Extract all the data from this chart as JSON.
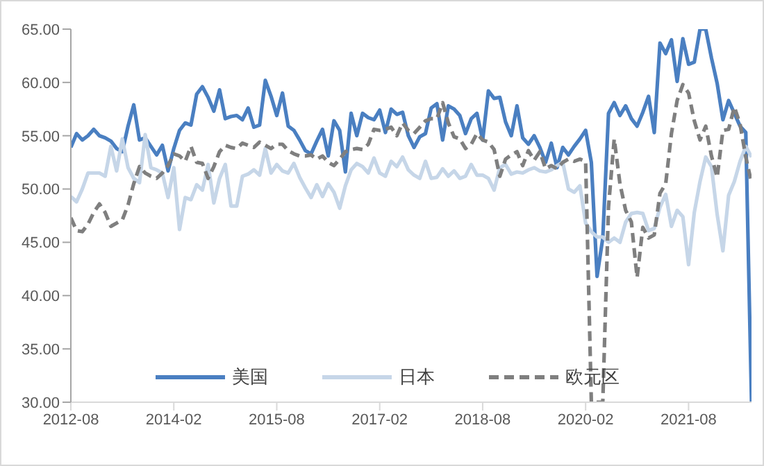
{
  "chart_data": {
    "type": "line",
    "x": [
      "2012-08",
      "2012-09",
      "2012-10",
      "2012-11",
      "2012-12",
      "2013-01",
      "2013-02",
      "2013-03",
      "2013-04",
      "2013-05",
      "2013-06",
      "2013-07",
      "2013-08",
      "2013-09",
      "2013-10",
      "2013-11",
      "2013-12",
      "2014-01",
      "2014-02",
      "2014-03",
      "2014-04",
      "2014-05",
      "2014-06",
      "2014-07",
      "2014-08",
      "2014-09",
      "2014-10",
      "2014-11",
      "2014-12",
      "2015-01",
      "2015-02",
      "2015-03",
      "2015-04",
      "2015-05",
      "2015-06",
      "2015-07",
      "2015-08",
      "2015-09",
      "2015-10",
      "2015-11",
      "2015-12",
      "2016-01",
      "2016-02",
      "2016-03",
      "2016-04",
      "2016-05",
      "2016-06",
      "2016-07",
      "2016-08",
      "2016-09",
      "2016-10",
      "2016-11",
      "2016-12",
      "2017-01",
      "2017-02",
      "2017-03",
      "2017-04",
      "2017-05",
      "2017-06",
      "2017-07",
      "2017-08",
      "2017-09",
      "2017-10",
      "2017-11",
      "2017-12",
      "2018-01",
      "2018-02",
      "2018-03",
      "2018-04",
      "2018-05",
      "2018-06",
      "2018-07",
      "2018-08",
      "2018-09",
      "2018-10",
      "2018-11",
      "2018-12",
      "2019-01",
      "2019-02",
      "2019-03",
      "2019-04",
      "2019-05",
      "2019-06",
      "2019-07",
      "2019-08",
      "2019-09",
      "2019-10",
      "2019-11",
      "2019-12",
      "2020-01",
      "2020-02",
      "2020-03",
      "2020-04",
      "2020-05",
      "2020-06",
      "2020-07",
      "2020-08",
      "2020-09",
      "2020-10",
      "2020-11",
      "2020-12",
      "2021-01",
      "2021-02",
      "2021-03",
      "2021-04",
      "2021-05",
      "2021-06",
      "2021-07",
      "2021-08",
      "2021-09",
      "2021-10",
      "2021-11",
      "2021-12",
      "2022-01",
      "2022-02",
      "2022-03",
      "2022-04",
      "2022-05",
      "2022-06",
      "2022-07"
    ],
    "series": [
      {
        "name": "美国",
        "color": "#4a7fc1",
        "line_style": "solid",
        "values": [
          53.9,
          55.2,
          54.6,
          55.0,
          55.6,
          55.0,
          54.8,
          54.5,
          53.8,
          53.5,
          55.9,
          57.9,
          54.6,
          54.8,
          54.0,
          53.2,
          54.1,
          51.7,
          53.8,
          55.5,
          56.2,
          56.0,
          58.9,
          59.6,
          58.6,
          57.3,
          59.3,
          56.6,
          56.8,
          56.9,
          56.5,
          57.6,
          55.8,
          56.0,
          60.2,
          58.7,
          56.9,
          59.0,
          55.9,
          55.5,
          54.6,
          53.6,
          53.3,
          54.5,
          55.6,
          53.1,
          56.4,
          55.5,
          51.6,
          57.1,
          55.0,
          57.1,
          56.7,
          56.5,
          57.4,
          55.3,
          57.5,
          57.0,
          57.2,
          55.0,
          53.9,
          54.9,
          55.2,
          57.6,
          58.0,
          54.6,
          57.8,
          57.5,
          56.9,
          55.2,
          56.6,
          57.1,
          54.6,
          59.2,
          58.5,
          58.6,
          56.3,
          55.0,
          57.8,
          54.8,
          54.2,
          55.0,
          53.9,
          52.5,
          54.3,
          52.0,
          53.9,
          53.2,
          54.0,
          54.7,
          55.5,
          52.5,
          41.8,
          45.4,
          57.1,
          58.1,
          56.9,
          57.8,
          56.6,
          55.9,
          57.2,
          58.7,
          55.3,
          63.7,
          62.7,
          64.0,
          60.1,
          64.1,
          61.7,
          61.9,
          65.0,
          65.0,
          62.3,
          59.9,
          56.5,
          58.3,
          57.1,
          55.9,
          55.3,
          30.0
        ]
      },
      {
        "name": "日本",
        "color": "#c6d6e8",
        "line_style": "solid",
        "values": [
          49.3,
          48.8,
          50.0,
          51.5,
          51.5,
          51.5,
          51.2,
          54.0,
          51.7,
          54.7,
          52.0,
          51.0,
          50.6,
          55.1,
          52.0,
          51.8,
          51.5,
          49.2,
          52.0,
          46.2,
          49.2,
          49.0,
          50.4,
          49.9,
          52.3,
          48.7,
          51.0,
          52.3,
          48.4,
          48.4,
          51.2,
          51.4,
          51.8,
          51.3,
          53.8,
          51.5,
          52.3,
          51.7,
          51.5,
          52.4,
          51.1,
          50.1,
          49.2,
          50.4,
          49.3,
          50.5,
          49.7,
          48.2,
          50.3,
          51.8,
          52.4,
          52.1,
          51.5,
          52.9,
          51.5,
          51.2,
          52.6,
          52.1,
          53.0,
          51.8,
          51.3,
          51.0,
          52.6,
          51.0,
          51.1,
          51.9,
          51.2,
          51.7,
          51.0,
          51.2,
          52.3,
          51.3,
          51.3,
          51.0,
          49.9,
          52.0,
          52.3,
          51.4,
          51.6,
          51.5,
          51.8,
          52.0,
          51.7,
          51.6,
          51.8,
          52.2,
          52.5,
          50.0,
          49.7,
          50.3,
          46.8,
          46.0,
          45.5,
          45.5,
          45.0,
          45.4,
          45.0,
          46.9,
          47.7,
          47.8,
          47.7,
          46.1,
          46.3,
          48.3,
          49.5,
          46.5,
          48.0,
          47.4,
          42.9,
          47.8,
          50.7,
          53.0,
          52.1,
          47.6,
          44.2,
          49.4,
          50.7,
          52.6,
          54.0,
          53.0
        ]
      },
      {
        "name": "欧元区",
        "color": "#7f7f7f",
        "line_style": "dashed",
        "values": [
          47.3,
          46.1,
          46.0,
          46.7,
          47.8,
          48.6,
          47.8,
          46.5,
          46.8,
          47.1,
          48.5,
          50.5,
          52.1,
          51.5,
          51.2,
          51.0,
          51.5,
          52.2,
          53.3,
          53.1,
          52.6,
          54.0,
          52.5,
          52.4,
          51.0,
          52.1,
          53.5,
          54.1,
          53.9,
          53.8,
          54.3,
          54.1,
          53.9,
          54.4,
          54.1,
          53.8,
          54.2,
          54.2,
          53.6,
          53.3,
          53.1,
          53.1,
          53.2,
          52.8,
          53.1,
          52.5,
          52.2,
          52.8,
          53.5,
          53.7,
          53.8,
          53.7,
          54.2,
          55.6,
          55.5,
          55.6,
          55.8,
          55.0,
          56.2,
          55.5,
          55.2,
          55.8,
          56.4,
          56.6,
          56.6,
          58.1,
          56.2,
          54.9,
          54.7,
          53.8,
          54.2,
          55.2,
          54.6,
          54.4,
          53.7,
          51.2,
          52.8,
          53.2,
          53.5,
          52.2,
          53.6,
          52.7,
          53.5,
          51.9,
          52.2,
          51.9,
          52.5,
          52.8,
          52.6,
          52.8,
          52.6,
          30.0,
          30.0,
          30.0,
          48.3,
          54.7,
          50.5,
          48.0,
          46.9,
          41.7,
          46.4,
          45.4,
          45.7,
          49.6,
          50.5,
          55.2,
          58.3,
          59.8,
          59.0,
          56.4,
          54.6,
          55.9,
          53.1,
          51.1,
          55.5,
          55.6,
          57.7,
          56.1,
          53.0,
          50.6
        ]
      }
    ],
    "xlim": [
      "2012-08",
      "2022-07"
    ],
    "xticks": [
      "2012-08",
      "2014-02",
      "2015-08",
      "2017-02",
      "2018-08",
      "2020-02",
      "2021-08"
    ],
    "ylim": [
      30,
      65
    ],
    "yticks": [
      {
        "value": 30,
        "label": "30.00"
      },
      {
        "value": 35,
        "label": "35.00"
      },
      {
        "value": 40,
        "label": "40.00"
      },
      {
        "value": 45,
        "label": "45.00"
      },
      {
        "value": 50,
        "label": "50.00"
      },
      {
        "value": 55,
        "label": "55.00"
      },
      {
        "value": 60,
        "label": "60.00"
      },
      {
        "value": 65,
        "label": "65.00"
      }
    ],
    "legend": "bottom"
  }
}
